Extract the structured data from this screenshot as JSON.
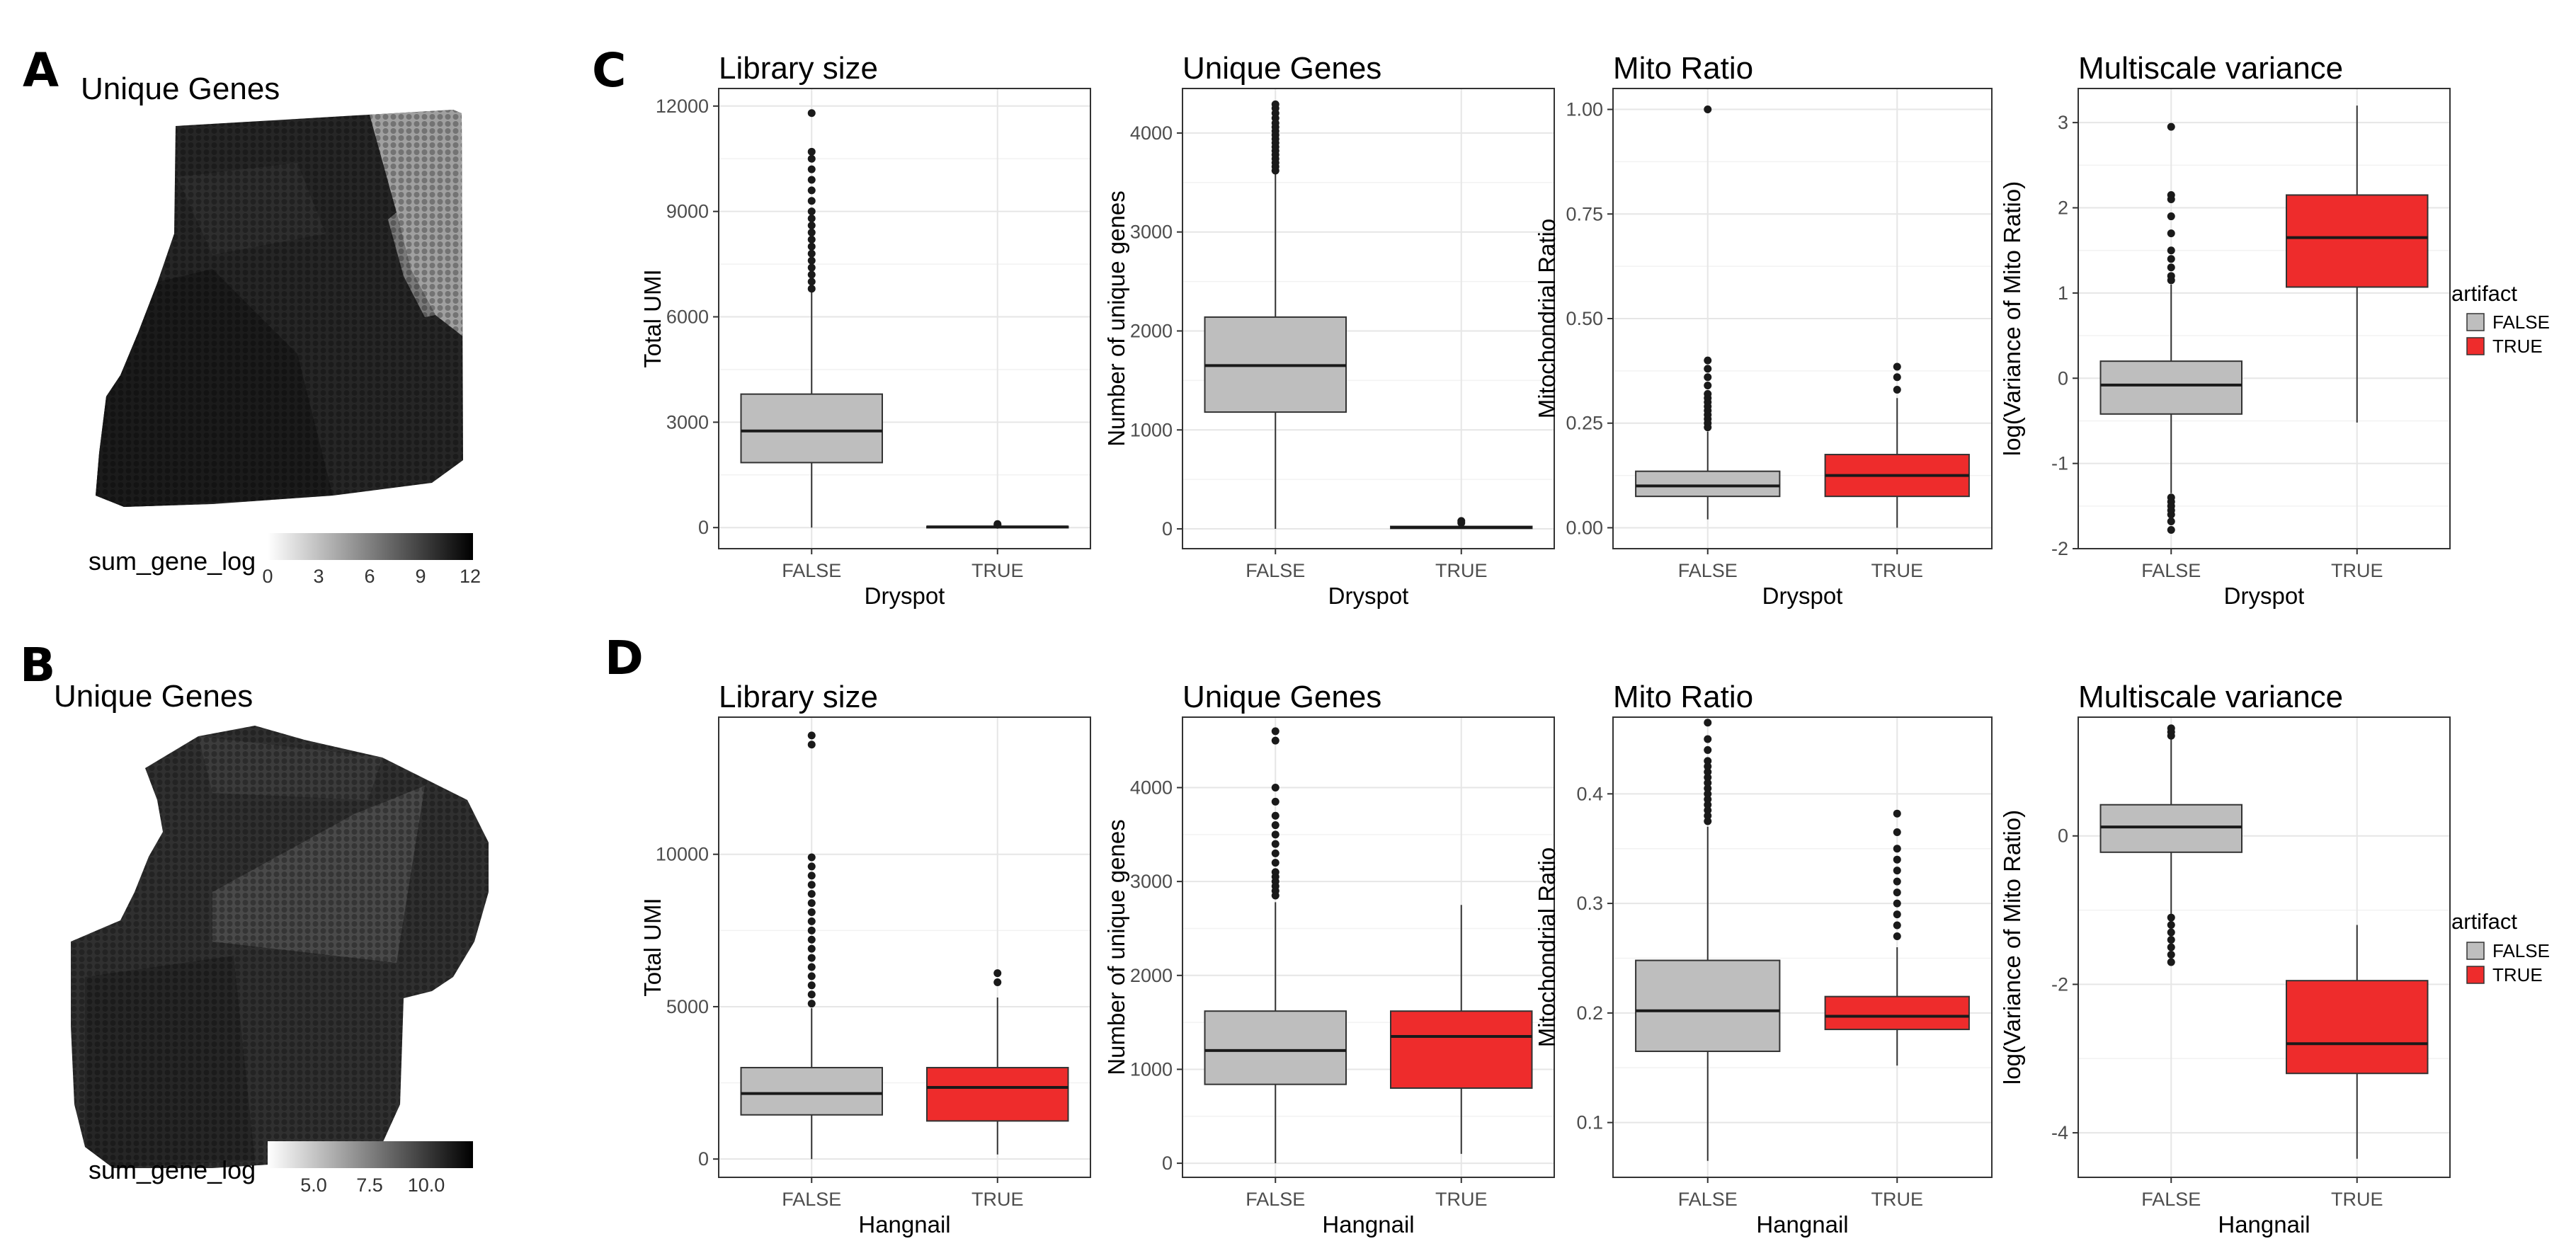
{
  "panels": {
    "A": {
      "letter": "A",
      "title": "Unique Genes",
      "colorbar": {
        "label": "sum_gene_log",
        "ticks": [
          "0",
          "3",
          "6",
          "9",
          "12"
        ]
      }
    },
    "B": {
      "letter": "B",
      "title": "Unique Genes",
      "colorbar": {
        "label": "sum_gene_log",
        "ticks": [
          "5.0",
          "7.5",
          "10.0"
        ]
      }
    },
    "C": {
      "letter": "C"
    },
    "D": {
      "letter": "D"
    }
  },
  "legend": {
    "title": "artifact",
    "entries": [
      {
        "label": "FALSE",
        "color": "#bebebe"
      },
      {
        "label": "TRUE",
        "color": "#ee2c2c"
      }
    ]
  },
  "chart_data": [
    {
      "id": "C1",
      "type": "box",
      "title": "Library size",
      "xlabel": "Dryspot",
      "ylabel": "Total UMI",
      "categories": [
        "FALSE",
        "TRUE"
      ],
      "ylim": [
        -600,
        12500
      ],
      "yticks": [
        0,
        3000,
        6000,
        9000,
        12000
      ],
      "boxes": [
        {
          "q1": 1850,
          "median": 2750,
          "q3": 3800,
          "lo": 0,
          "hi": 6700,
          "outliers": [
            6800,
            7000,
            7200,
            7400,
            7600,
            7800,
            8000,
            8200,
            8400,
            8600,
            8800,
            9000,
            9300,
            9600,
            9900,
            10200,
            10500,
            10700,
            11800
          ]
        },
        {
          "q1": 5,
          "median": 20,
          "q3": 35,
          "lo": 0,
          "hi": 60,
          "outliers": [
            80,
            100
          ]
        }
      ]
    },
    {
      "id": "C2",
      "type": "box",
      "title": "Unique Genes",
      "xlabel": "Dryspot",
      "ylabel": "Number of  unique genes",
      "categories": [
        "FALSE",
        "TRUE"
      ],
      "ylim": [
        -200,
        4450
      ],
      "yticks": [
        0,
        1000,
        2000,
        3000,
        4000
      ],
      "boxes": [
        {
          "q1": 1180,
          "median": 1650,
          "q3": 2140,
          "lo": 0,
          "hi": 3600,
          "outliers": [
            3620,
            3660,
            3700,
            3740,
            3780,
            3820,
            3860,
            3900,
            3940,
            3980,
            4020,
            4060,
            4100,
            4150,
            4200,
            4250,
            4290
          ]
        },
        {
          "q1": 5,
          "median": 15,
          "q3": 25,
          "lo": 0,
          "hi": 40,
          "outliers": [
            60,
            80
          ]
        }
      ]
    },
    {
      "id": "C3",
      "type": "box",
      "title": "Mito Ratio",
      "xlabel": "Dryspot",
      "ylabel": "Mitochondrial Ratio",
      "categories": [
        "FALSE",
        "TRUE"
      ],
      "ylim": [
        -0.05,
        1.05
      ],
      "yticks": [
        0.0,
        0.25,
        0.5,
        0.75,
        1.0
      ],
      "yticklabels": [
        "0.00",
        "0.25",
        "0.50",
        "0.75",
        "1.00"
      ],
      "boxes": [
        {
          "q1": 0.075,
          "median": 0.1,
          "q3": 0.135,
          "lo": 0.02,
          "hi": 0.23,
          "outliers": [
            0.24,
            0.25,
            0.26,
            0.27,
            0.28,
            0.29,
            0.3,
            0.31,
            0.32,
            0.34,
            0.36,
            0.38,
            0.4,
            1.0
          ]
        },
        {
          "q1": 0.075,
          "median": 0.125,
          "q3": 0.175,
          "lo": 0.0,
          "hi": 0.31,
          "outliers": [
            0.33,
            0.36,
            0.385
          ]
        }
      ]
    },
    {
      "id": "C4",
      "type": "box",
      "title": "Multiscale variance",
      "xlabel": "Dryspot",
      "ylabel": "log(Variance of Mito Ratio)",
      "categories": [
        "FALSE",
        "TRUE"
      ],
      "ylim": [
        -2.0,
        3.4
      ],
      "yticks": [
        -2,
        -1,
        0,
        1,
        2,
        3
      ],
      "boxes": [
        {
          "q1": -0.42,
          "median": -0.08,
          "q3": 0.2,
          "lo": -1.35,
          "hi": 1.1,
          "outliers": [
            -1.78,
            -1.68,
            -1.6,
            -1.55,
            -1.5,
            -1.45,
            -1.4,
            1.15,
            1.2,
            1.3,
            1.4,
            1.5,
            1.7,
            1.9,
            2.1,
            2.15,
            2.95
          ]
        },
        {
          "q1": 1.07,
          "median": 1.65,
          "q3": 2.15,
          "lo": -0.52,
          "hi": 3.2,
          "outliers": []
        }
      ]
    },
    {
      "id": "D1",
      "type": "box",
      "title": "Library size",
      "xlabel": "Hangnail",
      "ylabel": "Total UMI",
      "categories": [
        "FALSE",
        "TRUE"
      ],
      "ylim": [
        -600,
        14500
      ],
      "yticks": [
        0,
        5000,
        10000
      ],
      "boxes": [
        {
          "q1": 1450,
          "median": 2150,
          "q3": 3000,
          "lo": 0,
          "hi": 4950,
          "outliers": [
            5100,
            5400,
            5700,
            6000,
            6300,
            6600,
            6900,
            7200,
            7500,
            7800,
            8100,
            8400,
            8700,
            9000,
            9300,
            9600,
            9900,
            13600,
            13900
          ]
        },
        {
          "q1": 1250,
          "median": 2350,
          "q3": 3000,
          "lo": 150,
          "hi": 5300,
          "outliers": [
            5800,
            6100
          ]
        }
      ]
    },
    {
      "id": "D2",
      "type": "box",
      "title": "Unique Genes",
      "xlabel": "Hangnail",
      "ylabel": "Number of  unique genes",
      "categories": [
        "FALSE",
        "TRUE"
      ],
      "ylim": [
        -150,
        4750
      ],
      "yticks": [
        0,
        1000,
        2000,
        3000,
        4000
      ],
      "boxes": [
        {
          "q1": 840,
          "median": 1200,
          "q3": 1620,
          "lo": 0,
          "hi": 2780,
          "outliers": [
            2850,
            2900,
            2950,
            3000,
            3050,
            3100,
            3200,
            3300,
            3400,
            3500,
            3600,
            3700,
            3850,
            4000,
            4500,
            4600
          ]
        },
        {
          "q1": 800,
          "median": 1350,
          "q3": 1620,
          "lo": 100,
          "hi": 2750,
          "outliers": []
        }
      ]
    },
    {
      "id": "D3",
      "type": "box",
      "title": "Mito Ratio",
      "xlabel": "Hangnail",
      "ylabel": "Mitochondrial Ratio",
      "categories": [
        "FALSE",
        "TRUE"
      ],
      "ylim": [
        0.05,
        0.47
      ],
      "yticks": [
        0.1,
        0.2,
        0.3,
        0.4
      ],
      "boxes": [
        {
          "q1": 0.165,
          "median": 0.202,
          "q3": 0.248,
          "lo": 0.065,
          "hi": 0.37,
          "outliers": [
            0.375,
            0.38,
            0.385,
            0.39,
            0.395,
            0.4,
            0.405,
            0.41,
            0.415,
            0.42,
            0.425,
            0.43,
            0.44,
            0.45,
            0.465
          ]
        },
        {
          "q1": 0.185,
          "median": 0.197,
          "q3": 0.215,
          "lo": 0.152,
          "hi": 0.26,
          "outliers": [
            0.27,
            0.28,
            0.29,
            0.3,
            0.31,
            0.32,
            0.33,
            0.34,
            0.35,
            0.365,
            0.382
          ]
        }
      ]
    },
    {
      "id": "D4",
      "type": "box",
      "title": "Multiscale variance",
      "xlabel": "Hangnail",
      "ylabel": "log(Variance of Mito Ratio)",
      "categories": [
        "FALSE",
        "TRUE"
      ],
      "ylim": [
        -4.6,
        1.6
      ],
      "yticks": [
        -4,
        -2,
        0
      ],
      "boxes": [
        {
          "q1": -0.22,
          "median": 0.12,
          "q3": 0.42,
          "lo": -1.05,
          "hi": 1.3,
          "outliers": [
            -1.7,
            -1.6,
            -1.5,
            -1.4,
            -1.3,
            -1.2,
            -1.1,
            1.35,
            1.4,
            1.45
          ]
        },
        {
          "q1": -3.2,
          "median": -2.8,
          "q3": -1.95,
          "lo": -4.35,
          "hi": -1.2,
          "outliers": []
        }
      ]
    }
  ]
}
